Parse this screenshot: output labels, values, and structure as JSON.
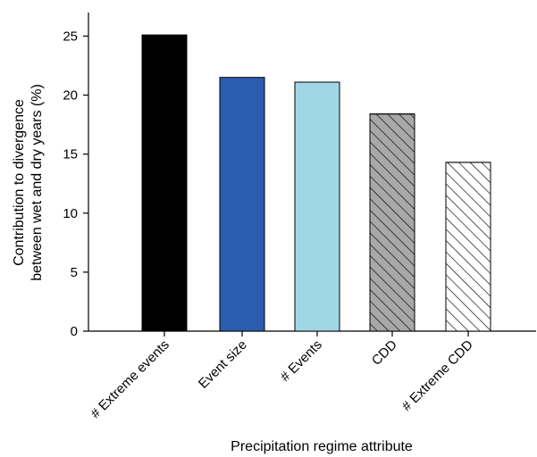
{
  "chart_data": {
    "type": "bar",
    "categories": [
      "# Extreme events",
      "Event size",
      "# Events",
      "CDD",
      "# Extreme CDD"
    ],
    "values": [
      25.1,
      21.5,
      21.1,
      18.4,
      14.3
    ],
    "xlabel": "Precipitation regime attribute",
    "ylabel_lines": [
      "Contribution to divergence",
      "between wet and dry years (%)"
    ],
    "ylim": [
      0,
      27
    ],
    "yticks": [
      0,
      5,
      10,
      15,
      20,
      25
    ],
    "grid": false,
    "bar_styles": [
      {
        "fill": "#000000",
        "pattern": "solid"
      },
      {
        "fill": "#2a5db0",
        "pattern": "solid"
      },
      {
        "fill": "#9fd7e6",
        "pattern": "solid"
      },
      {
        "fill": "#a8a8a8",
        "pattern": "hatch"
      },
      {
        "fill": "#ffffff",
        "pattern": "hatch"
      }
    ]
  }
}
